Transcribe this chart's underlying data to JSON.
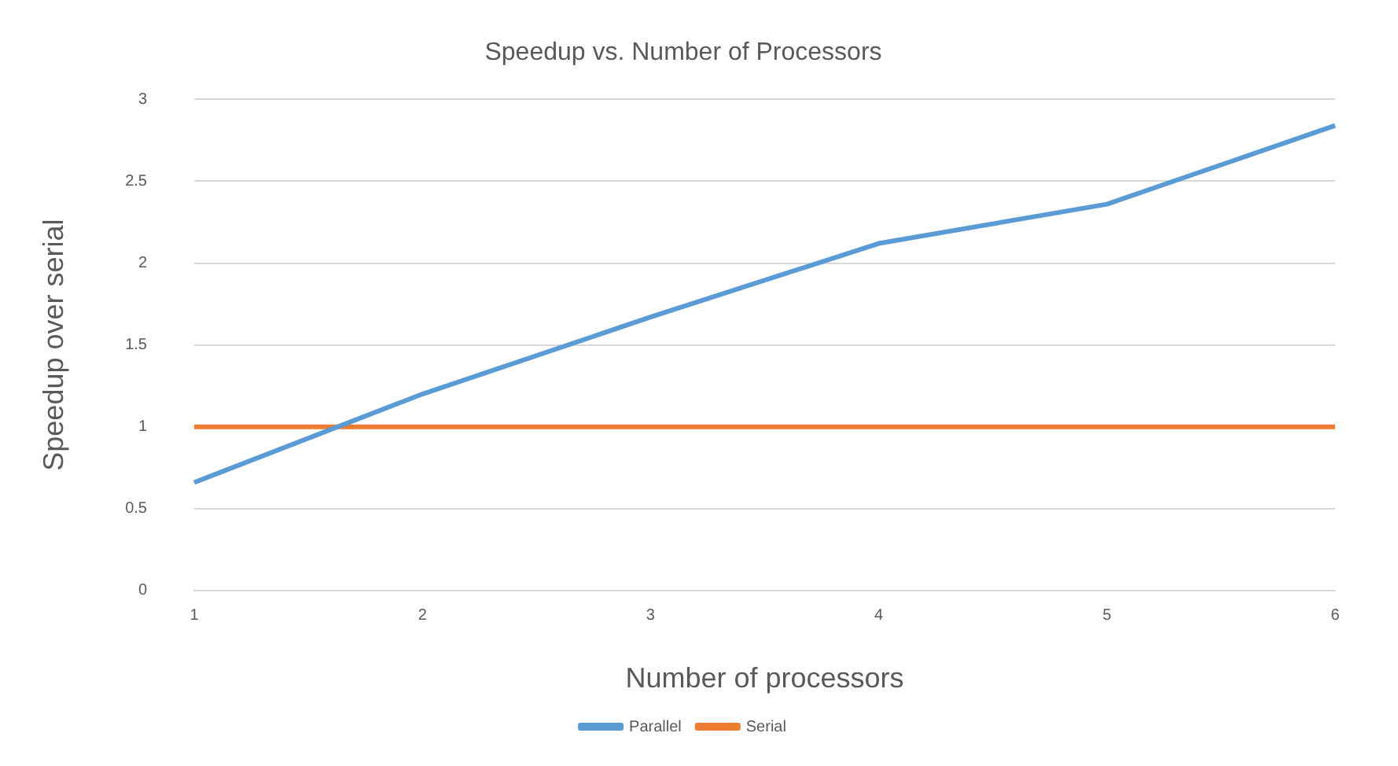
{
  "chart_data": {
    "type": "line",
    "title": "Speedup vs. Number of Processors",
    "xlabel": "Number of processors",
    "ylabel": "Speedup over serial",
    "categories": [
      "1",
      "2",
      "3",
      "4",
      "5",
      "6"
    ],
    "series": [
      {
        "name": "Parallel",
        "color": "#5b9bd5",
        "values": [
          0.66,
          1.2,
          1.67,
          2.12,
          2.36,
          2.84
        ]
      },
      {
        "name": "Serial",
        "color": "#ed7d31",
        "values": [
          1,
          1,
          1,
          1,
          1,
          1
        ]
      }
    ],
    "ylim": [
      0,
      3
    ],
    "yticks": [
      0,
      0.5,
      1,
      1.5,
      2,
      2.5,
      3
    ],
    "grid": "y",
    "legend": "bottom",
    "marker": "none",
    "line_style": "solid"
  }
}
